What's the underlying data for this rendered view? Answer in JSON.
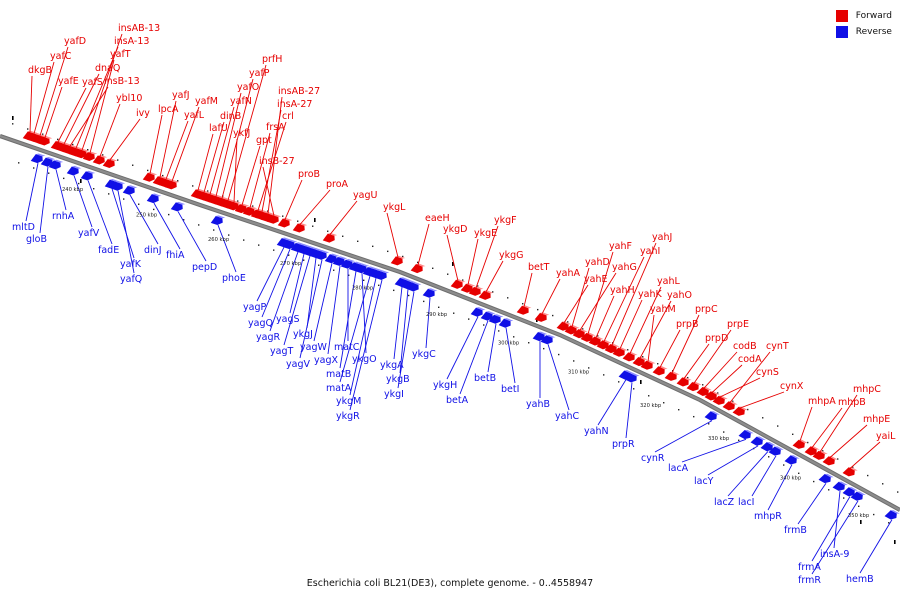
{
  "legend": {
    "forward_label": "Forward",
    "reverse_label": "Reverse",
    "forward_color": "#e60000",
    "reverse_color": "#1010e6"
  },
  "axis": {
    "color": "#8c8c8c",
    "tick_labels": [
      "240 kbp",
      "250 kbp",
      "260 kbp",
      "270 kbp",
      "280 kbp",
      "290 kbp",
      "300 kbp",
      "310 kbp",
      "320 kbp",
      "330 kbp",
      "340 kbp",
      "350 kbp"
    ]
  },
  "caption": "Escherichia coli BL21(DE3), complete genome. - 0..4558947",
  "forward_genes": [
    "dkgB",
    "yafC",
    "yafD",
    "yafE",
    "yafS",
    "dnaQ",
    "insB-13",
    "insA-13",
    "insAB-13",
    "yafT",
    "ybl10",
    "ivy",
    "lpcA",
    "yafJ",
    "yafL",
    "yafM",
    "lafU",
    "dinB",
    "yafN",
    "yafO",
    "yafP",
    "prfH",
    "ykfJ",
    "gpt",
    "frsA",
    "crl",
    "insA-27",
    "insAB-27",
    "insB-27",
    "proB",
    "proA",
    "yagU",
    "ykgL",
    "eaeH",
    "ykgD",
    "ykgE",
    "ykgF",
    "ykgG",
    "betT",
    "yahA",
    "yahE",
    "yahD",
    "yahG",
    "yahF",
    "yahH",
    "yahI",
    "yahJ",
    "yahK",
    "yahL",
    "yahO",
    "yahM",
    "prpB",
    "prpC",
    "prpD",
    "prpE",
    "codB",
    "codA",
    "cynS",
    "cynT",
    "cynX",
    "mhpA",
    "mhpB",
    "mhpC",
    "mhpE",
    "yaiL"
  ],
  "reverse_genes": [
    "mltD",
    "gloB",
    "rnhA",
    "yafV",
    "fadE",
    "yafK",
    "yafQ",
    "dinJ",
    "fhiA",
    "pepD",
    "phoE",
    "yagP",
    "yagQ",
    "yagR",
    "yagS",
    "yagT",
    "ykgJ",
    "yagV",
    "yagW",
    "yagX",
    "matC",
    "matB",
    "ykgO",
    "matA",
    "ykgM",
    "ykgR",
    "ykgA",
    "ykgB",
    "ykgI",
    "ykgC",
    "ykgH",
    "betA",
    "betB",
    "betI",
    "yahB",
    "yahC",
    "yahN",
    "prpR",
    "cynR",
    "lacA",
    "lacY",
    "lacZ",
    "lacI",
    "mhpR",
    "frmB",
    "insA-9",
    "frmA",
    "frmR",
    "hemB"
  ]
}
